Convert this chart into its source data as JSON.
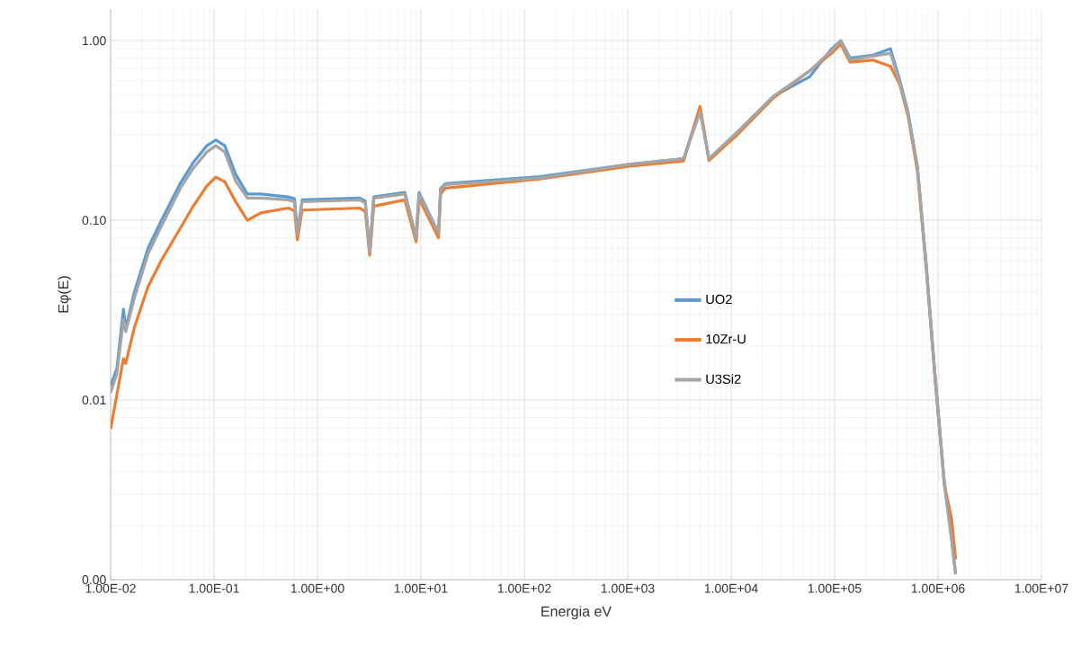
{
  "chart_data": {
    "type": "line",
    "xlabel": "Energia eV",
    "ylabel": "Eφ(E)",
    "log": "xy",
    "grid": true,
    "legend": "center",
    "line_style": "solid",
    "marker": "none",
    "xlim": [
      0.01,
      10000000
    ],
    "ylim": [
      0.001,
      1.5
    ],
    "xticks": [
      {
        "value": 0.01,
        "label": "1.00E-02"
      },
      {
        "value": 0.1,
        "label": "1.00E-01"
      },
      {
        "value": 1,
        "label": "1.00E+00"
      },
      {
        "value": 10,
        "label": "1.00E+01"
      },
      {
        "value": 100,
        "label": "1.00E+02"
      },
      {
        "value": 1000,
        "label": "1.00E+03"
      },
      {
        "value": 10000,
        "label": "1.00E+04"
      },
      {
        "value": 100000,
        "label": "1.00E+05"
      },
      {
        "value": 1000000,
        "label": "1.00E+06"
      },
      {
        "value": 10000000,
        "label": "1.00E+07"
      }
    ],
    "yticks": [
      {
        "value": 0.001,
        "label": "0.00"
      },
      {
        "value": 0.01,
        "label": "0.01"
      },
      {
        "value": 0.1,
        "label": "0.10"
      },
      {
        "value": 1,
        "label": "1.00"
      }
    ],
    "x": [
      0.01,
      0.0115,
      0.0133,
      0.014,
      0.017,
      0.023,
      0.031,
      0.047,
      0.063,
      0.085,
      0.104,
      0.127,
      0.162,
      0.21,
      0.283,
      0.52,
      0.6,
      0.64,
      0.71,
      2.56,
      2.9,
      3.2,
      3.5,
      7.0,
      9.0,
      9.6,
      14.8,
      15.5,
      17.2,
      140,
      1040,
      3470,
      5000,
      6100,
      11500,
      25700,
      57500,
      93300,
      114800,
      141000,
      234000,
      347000,
      427000,
      513000,
      631000,
      770000,
      933000,
      1150000,
      1350000,
      1480000
    ],
    "series": [
      {
        "name": "UO2",
        "color": "#5b9bd5",
        "values": [
          0.012,
          0.015,
          0.032,
          0.025,
          0.04,
          0.07,
          0.1,
          0.16,
          0.21,
          0.26,
          0.28,
          0.26,
          0.18,
          0.14,
          0.14,
          0.135,
          0.132,
          0.085,
          0.13,
          0.133,
          0.128,
          0.066,
          0.135,
          0.143,
          0.08,
          0.143,
          0.085,
          0.15,
          0.16,
          0.175,
          0.205,
          0.22,
          0.42,
          0.22,
          0.31,
          0.49,
          0.63,
          0.9,
          1.0,
          0.8,
          0.83,
          0.9,
          0.6,
          0.4,
          0.2,
          0.056,
          0.014,
          0.0035,
          0.0017,
          0.00107
        ]
      },
      {
        "name": "10Zr-U",
        "color": "#ed7d31",
        "values": [
          0.0069,
          0.0107,
          0.017,
          0.016,
          0.0254,
          0.0427,
          0.06,
          0.09,
          0.12,
          0.155,
          0.174,
          0.164,
          0.127,
          0.1,
          0.11,
          0.117,
          0.113,
          0.078,
          0.114,
          0.117,
          0.112,
          0.064,
          0.12,
          0.13,
          0.076,
          0.132,
          0.08,
          0.14,
          0.151,
          0.17,
          0.2,
          0.214,
          0.43,
          0.215,
          0.3,
          0.48,
          0.68,
          0.85,
          0.955,
          0.76,
          0.78,
          0.72,
          0.57,
          0.38,
          0.19,
          0.054,
          0.0135,
          0.0034,
          0.0022,
          0.0013
        ]
      },
      {
        "name": "U3Si2",
        "color": "#a5a5a5",
        "values": [
          0.011,
          0.014,
          0.028,
          0.024,
          0.037,
          0.065,
          0.093,
          0.15,
          0.195,
          0.24,
          0.26,
          0.24,
          0.165,
          0.133,
          0.133,
          0.13,
          0.127,
          0.083,
          0.127,
          0.13,
          0.125,
          0.066,
          0.133,
          0.14,
          0.08,
          0.14,
          0.085,
          0.15,
          0.158,
          0.172,
          0.205,
          0.22,
          0.4,
          0.22,
          0.31,
          0.49,
          0.68,
          0.88,
          1.0,
          0.78,
          0.82,
          0.85,
          0.58,
          0.39,
          0.2,
          0.055,
          0.014,
          0.0034,
          0.0017,
          0.00107
        ]
      }
    ]
  }
}
